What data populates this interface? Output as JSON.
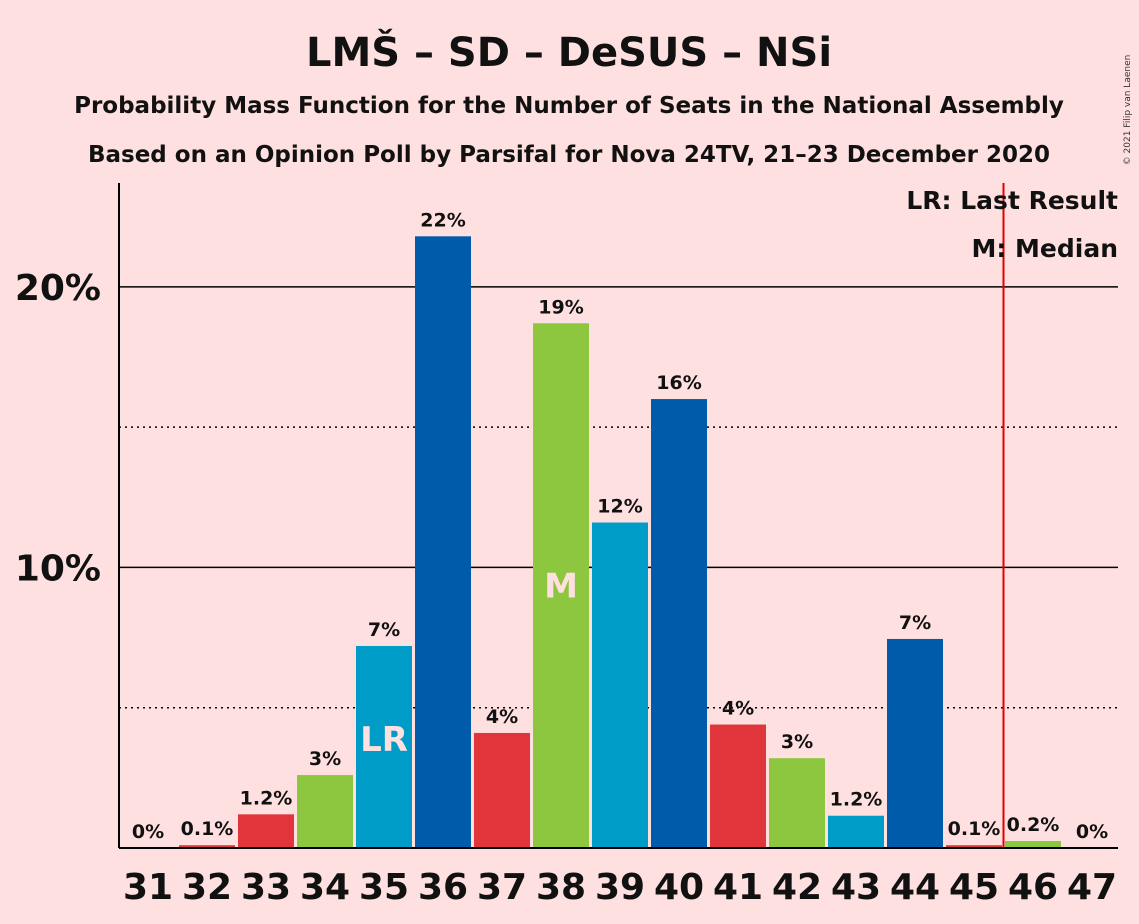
{
  "header": {
    "title": "LMŠ – SD – DeSUS – NSi",
    "subtitle1": "Probability Mass Function for the Number of Seats in the National Assembly",
    "subtitle2": "Based on an Opinion Poll by Parsifal for Nova 24TV, 21–23 December 2020",
    "copyright": "© 2021 Filip van Laenen"
  },
  "legend": {
    "last_result": "LR: Last Result",
    "median": "M: Median"
  },
  "chart_data": {
    "type": "bar",
    "categories": [
      "31",
      "32",
      "33",
      "34",
      "35",
      "36",
      "37",
      "38",
      "39",
      "40",
      "41",
      "42",
      "43",
      "44",
      "45",
      "46",
      "47"
    ],
    "values": [
      0,
      0.1,
      1.2,
      2.6,
      7.2,
      21.8,
      4.1,
      18.7,
      11.6,
      16.0,
      4.4,
      3.2,
      1.15,
      7.45,
      0.1,
      0.25,
      0
    ],
    "data_labels": [
      "0%",
      "0.1%",
      "1.2%",
      "3%",
      "7%",
      "22%",
      "4%",
      "19%",
      "12%",
      "16%",
      "4%",
      "3%",
      "1.2%",
      "7%",
      "0.1%",
      "0.2%",
      "0%"
    ],
    "colors": [
      "#E0353A",
      "#E0353A",
      "#E0353A",
      "#8DC63F",
      "#009CC8",
      "#005BAA",
      "#E0353A",
      "#8DC63F",
      "#009CC8",
      "#005BAA",
      "#E0353A",
      "#8DC63F",
      "#009CC8",
      "#005BAA",
      "#E0353A",
      "#8DC63F",
      "#009CC8"
    ],
    "ylim": [
      0,
      23.7
    ],
    "y_ticks": [
      10,
      20
    ],
    "y_tick_labels": [
      "10%",
      "20%"
    ],
    "minor_gridlines": [
      5,
      15
    ],
    "last_result_seat": "35",
    "last_result_label": "LR",
    "median_seat": "38",
    "median_label": "M",
    "majority_line_after_seat": "45",
    "majority_line_color": "#E00000",
    "legend_position": "top-right"
  }
}
